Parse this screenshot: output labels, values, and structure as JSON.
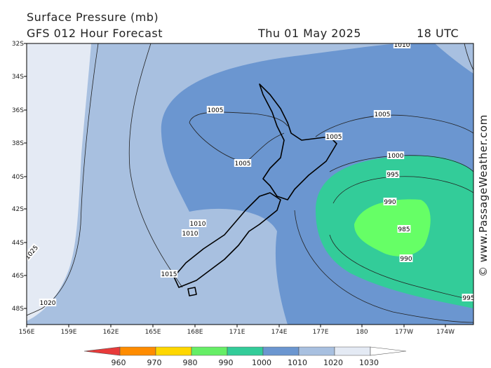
{
  "header": {
    "title": "Surface Pressure (mb)",
    "model": "GFS 012 Hour Forecast",
    "date": "Thu 01 May 2025",
    "time": "18 UTC"
  },
  "map": {
    "lat_labels": [
      "32S",
      "34S",
      "36S",
      "38S",
      "40S",
      "42S",
      "44S",
      "46S",
      "48S"
    ],
    "lon_labels": [
      "156E",
      "159E",
      "162E",
      "165E",
      "168E",
      "171E",
      "174E",
      "177E",
      "180",
      "177W",
      "174W"
    ],
    "contour_labels": [
      "1010",
      "1005",
      "1005",
      "1005",
      "1005",
      "1000",
      "995",
      "990",
      "985",
      "990",
      "1010",
      "1010",
      "1015",
      "1020",
      "1025",
      "995"
    ]
  },
  "legend": {
    "colors": [
      "#e83a3a",
      "#ff8c00",
      "#ffd700",
      "#66ee66",
      "#33cc99",
      "#6b96d0",
      "#a8c0e0",
      "#e4eaf4",
      "#ffffff"
    ],
    "labels": [
      960,
      970,
      980,
      990,
      1000,
      1010,
      1020,
      1030
    ]
  },
  "credit": "© www.PassageWeather.com"
}
